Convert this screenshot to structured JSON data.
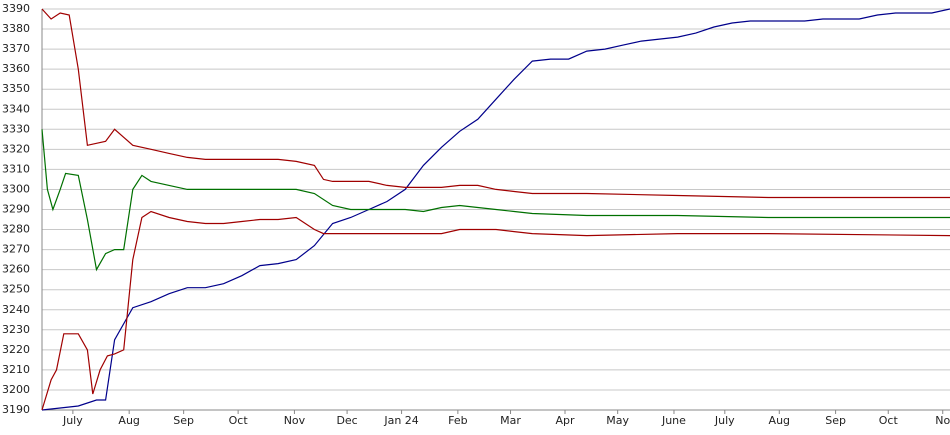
{
  "chart_data": {
    "type": "line",
    "ylim": [
      3190,
      3390
    ],
    "yticks": [
      3190,
      3200,
      3210,
      3220,
      3230,
      3240,
      3250,
      3260,
      3270,
      3280,
      3290,
      3300,
      3310,
      3320,
      3330,
      3340,
      3350,
      3360,
      3370,
      3380,
      3390
    ],
    "xlim": [
      0,
      500
    ],
    "xticks": [
      {
        "value": 17,
        "label": "July"
      },
      {
        "value": 48,
        "label": "Aug"
      },
      {
        "value": 78,
        "label": "Sep"
      },
      {
        "value": 108,
        "label": "Oct"
      },
      {
        "value": 139,
        "label": "Nov"
      },
      {
        "value": 168,
        "label": "Dec"
      },
      {
        "value": 198,
        "label": "Jan 24"
      },
      {
        "value": 229,
        "label": "Feb"
      },
      {
        "value": 258,
        "label": "Mar"
      },
      {
        "value": 288,
        "label": "Apr"
      },
      {
        "value": 317,
        "label": "May"
      },
      {
        "value": 348,
        "label": "June"
      },
      {
        "value": 376,
        "label": "July"
      },
      {
        "value": 406,
        "label": "Aug"
      },
      {
        "value": 437,
        "label": "Sep"
      },
      {
        "value": 466,
        "label": "Oct"
      },
      {
        "value": 496,
        "label": "No"
      }
    ],
    "grid": true,
    "series": [
      {
        "color": "#00008b",
        "x": [
          0,
          10,
          20,
          30,
          35,
          40,
          50,
          60,
          70,
          80,
          90,
          100,
          110,
          120,
          130,
          140,
          150,
          160,
          170,
          180,
          190,
          200,
          210,
          220,
          230,
          240,
          250,
          260,
          270,
          280,
          290,
          300,
          310,
          320,
          330,
          340,
          350,
          360,
          370,
          380,
          390,
          400,
          410,
          420,
          430,
          440,
          450,
          460,
          470,
          480,
          490,
          500
        ],
        "values": [
          3190,
          3191,
          3192,
          3195,
          3195,
          3225,
          3241,
          3244,
          3248,
          3251,
          3251,
          3253,
          3257,
          3262,
          3263,
          3265,
          3272,
          3283,
          3286,
          3290,
          3294,
          3300,
          3312,
          3321,
          3329,
          3335,
          3345,
          3355,
          3364,
          3365,
          3365,
          3369,
          3370,
          3372,
          3374,
          3375,
          3376,
          3378,
          3381,
          3383,
          3384,
          3384,
          3384,
          3384,
          3385,
          3385,
          3385,
          3387,
          3388,
          3388,
          3388,
          3390
        ]
      },
      {
        "color": "#a00000",
        "x": [
          0,
          5,
          10,
          15,
          20,
          25,
          30,
          35,
          40,
          45,
          50,
          60,
          70,
          80,
          90,
          100,
          110,
          120,
          130,
          140,
          150,
          155,
          160,
          180,
          190,
          200,
          210,
          220,
          230,
          240,
          250,
          260,
          270,
          300,
          350,
          400,
          500
        ],
        "values": [
          3390,
          3385,
          3388,
          3387,
          3360,
          3322,
          3323,
          3324,
          3330,
          3326,
          3322,
          3320,
          3318,
          3316,
          3315,
          3315,
          3315,
          3315,
          3315,
          3314,
          3312,
          3305,
          3304,
          3304,
          3302,
          3301,
          3301,
          3301,
          3302,
          3302,
          3300,
          3299,
          3298,
          3298,
          3297,
          3296,
          3296
        ]
      },
      {
        "color": "#007000",
        "x": [
          0,
          3,
          6,
          10,
          13,
          20,
          25,
          30,
          35,
          40,
          45,
          50,
          55,
          60,
          70,
          80,
          140,
          150,
          160,
          170,
          180,
          190,
          200,
          210,
          220,
          230,
          240,
          250,
          260,
          270,
          300,
          350,
          400,
          500
        ],
        "values": [
          3330,
          3300,
          3290,
          3300,
          3308,
          3307,
          3285,
          3260,
          3268,
          3270,
          3270,
          3300,
          3307,
          3304,
          3302,
          3300,
          3300,
          3298,
          3292,
          3290,
          3290,
          3290,
          3290,
          3289,
          3291,
          3292,
          3291,
          3290,
          3289,
          3288,
          3287,
          3287,
          3286,
          3286
        ]
      },
      {
        "color": "#a00000",
        "x": [
          0,
          5,
          8,
          12,
          20,
          25,
          28,
          32,
          36,
          40,
          45,
          50,
          55,
          60,
          70,
          80,
          90,
          100,
          110,
          120,
          130,
          140,
          150,
          155,
          160,
          220,
          230,
          250,
          260,
          270,
          300,
          350,
          400,
          500
        ],
        "values": [
          3190,
          3205,
          3210,
          3228,
          3228,
          3220,
          3198,
          3210,
          3217,
          3218,
          3220,
          3265,
          3286,
          3289,
          3286,
          3284,
          3283,
          3283,
          3284,
          3285,
          3285,
          3286,
          3280,
          3278,
          3278,
          3278,
          3280,
          3280,
          3279,
          3278,
          3277,
          3278,
          3278,
          3277
        ]
      }
    ]
  }
}
